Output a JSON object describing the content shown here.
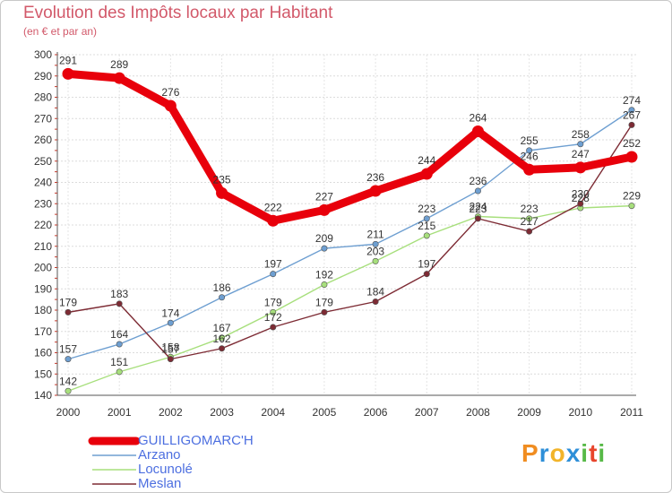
{
  "title": "Evolution des Impôts locaux par Habitant",
  "subtitle": "(en € et par an)",
  "chart_data": {
    "type": "line",
    "title": "Evolution des Impôts locaux par Habitant",
    "subtitle": "(en € et par an)",
    "xlabel": "",
    "ylabel": "",
    "x": [
      "2000",
      "2001",
      "2002",
      "2003",
      "2004",
      "2005",
      "2006",
      "2007",
      "2008",
      "2009",
      "2010",
      "2011"
    ],
    "ylim": [
      140,
      300
    ],
    "yticks": [
      140,
      150,
      160,
      170,
      180,
      190,
      200,
      210,
      220,
      230,
      240,
      250,
      260,
      270,
      280,
      290,
      300
    ],
    "grid": true,
    "legend_position": "bottom-left",
    "series": [
      {
        "name": "GUILLIGOMARC'H",
        "color": "#e8000b",
        "values": [
          291,
          289,
          276,
          235,
          222,
          227,
          236,
          244,
          264,
          246,
          247,
          252
        ]
      },
      {
        "name": "Arzano",
        "color": "#6e9fd1",
        "values": [
          157,
          164,
          174,
          186,
          197,
          209,
          211,
          223,
          236,
          255,
          258,
          274
        ]
      },
      {
        "name": "Locunolé",
        "color": "#a7df7c",
        "values": [
          142,
          151,
          158,
          167,
          179,
          192,
          203,
          215,
          224,
          223,
          228,
          229
        ]
      },
      {
        "name": "Meslan",
        "color": "#7d2b34",
        "values": [
          179,
          183,
          157,
          162,
          172,
          179,
          184,
          197,
          223,
          217,
          230,
          267
        ]
      }
    ]
  },
  "legend": {
    "items": [
      "GUILLIGOMARC'H",
      "Arzano",
      "Locunolé",
      "Meslan"
    ]
  },
  "logo": {
    "letters": [
      "P",
      "r",
      "o",
      "x",
      "i",
      "t",
      "i"
    ],
    "colors": [
      "#f08d21",
      "#2e8fd8",
      "#f2b42a",
      "#2e8fd8",
      "#57b947",
      "#e8452c",
      "#57b947"
    ]
  }
}
